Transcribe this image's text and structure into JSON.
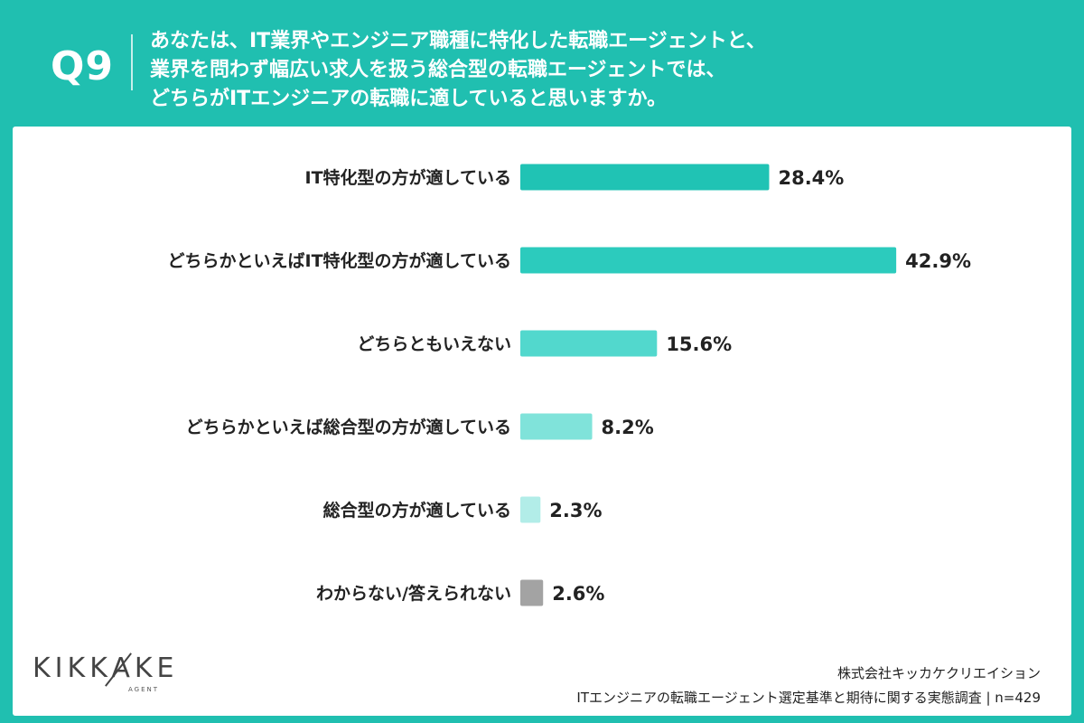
{
  "header": {
    "question_number": "Q9",
    "question_lines": [
      "あなたは、IT業界やエンジニア職種に特化した転職エージェントと、",
      "業界を問わず幅広い求人を扱う総合型の転職エージェントでは、",
      "どちらがITエンジニアの転職に適していると思いますか。"
    ]
  },
  "chart_data": {
    "type": "bar",
    "orientation": "horizontal",
    "categories": [
      "IT特化型の方が適している",
      "どちらかといえばIT特化型の方が適している",
      "どちらともいえない",
      "どちらかといえば総合型の方が適している",
      "総合型の方が適している",
      "わからない/答えられない"
    ],
    "values": [
      28.4,
      42.9,
      15.6,
      8.2,
      2.3,
      2.6
    ],
    "value_labels": [
      "28.4%",
      "42.9%",
      "15.6%",
      "8.2%",
      "2.3%",
      "2.6%"
    ],
    "colors": [
      "#20c3b4",
      "#2ccbbd",
      "#52d8cd",
      "#80e3da",
      "#b2ede8",
      "#a3a3a3"
    ],
    "unit": "%",
    "xlim": [
      0,
      50
    ],
    "grid": false,
    "legend": "none"
  },
  "brand": {
    "logo_text": "KIKKAKE",
    "logo_sub": "AGENT"
  },
  "footer": {
    "company": "株式会社キッカケクリエイション",
    "survey": "ITエンジニアの転職エージェント選定基準と期待に関する実態調査 | n=429"
  },
  "colors": {
    "frame": "#20bfb0",
    "panel": "#ffffff",
    "text": "#222222"
  }
}
